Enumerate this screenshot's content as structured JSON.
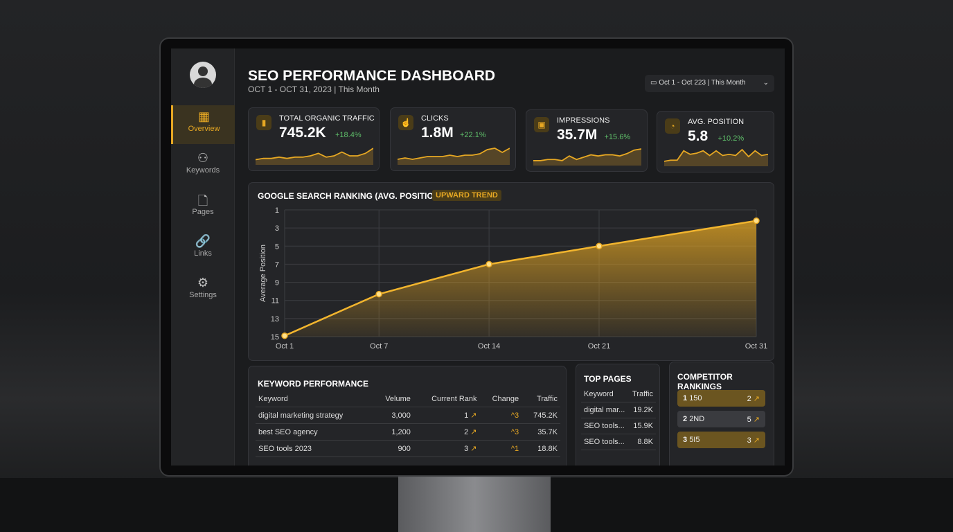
{
  "sidebar": {
    "items": [
      {
        "label": "Overview",
        "icon": "grid-icon",
        "glyph": "▦",
        "active": true
      },
      {
        "label": "Keywords",
        "icon": "nodes-icon",
        "glyph": "⚇"
      },
      {
        "label": "Pages",
        "icon": "page-icon",
        "glyph": "🗋"
      },
      {
        "label": "Links",
        "icon": "link-icon",
        "glyph": "🔗"
      },
      {
        "label": "Settings",
        "icon": "gear-icon",
        "glyph": "⚙"
      }
    ]
  },
  "header": {
    "title": "SEO PERFORMANCE DASHBOARD",
    "subtitle": "OCT 1 - OCT 31, 2023 | This Month",
    "date_range": "Oct 1 - Oct 223 | This Month"
  },
  "kpis": [
    {
      "label": "TOTAL ORGANIC TRAFFIC",
      "value": "745.2K",
      "change": "+18.4%",
      "glyph": "▮",
      "spark": [
        3,
        4,
        4,
        5,
        4,
        5,
        5,
        6,
        8,
        5,
        6,
        9,
        6,
        6,
        8,
        12
      ]
    },
    {
      "label": "CLICKS",
      "value": "1.8M",
      "change": "+22.1%",
      "glyph": "☝",
      "spark": [
        3,
        4,
        3,
        4,
        5,
        5,
        5,
        6,
        5,
        6,
        6,
        7,
        10,
        11,
        8,
        11
      ]
    },
    {
      "label": "IMPRESSIONS",
      "value": "35.7M",
      "change": "+15.6%",
      "glyph": "▣",
      "spark": [
        3,
        3,
        4,
        4,
        3,
        7,
        4,
        6,
        8,
        7,
        8,
        8,
        7,
        9,
        12,
        13
      ]
    },
    {
      "label": "AVG. POSITION",
      "value": "5.8",
      "change": "+10.2%",
      "glyph": "◔",
      "spark": [
        3,
        4,
        4,
        12,
        9,
        10,
        12,
        8,
        12,
        8,
        9,
        8,
        13,
        7,
        12,
        8,
        9
      ]
    }
  ],
  "colors": {
    "accent": "#e7a823",
    "positive": "#5fbf6a"
  },
  "chart_data": {
    "type": "area",
    "title": "GOOGLE SEARCH RANKING (AVG. POSITION)",
    "badge": "UPWARD TREND",
    "ylabel": "Average Position",
    "xlabel": "",
    "ylim": [
      1,
      15
    ],
    "y_inverted": true,
    "yticks": [
      1,
      3,
      5,
      7,
      9,
      11,
      13,
      15
    ],
    "x": [
      "Oct 1",
      "Oct 7",
      "Oct 14",
      "Oct 21",
      "Oct 31"
    ],
    "x_days": [
      1,
      7,
      14,
      21,
      31
    ],
    "values": [
      14.9,
      10.3,
      7.0,
      5.0,
      2.2
    ],
    "grid": true
  },
  "keywords": {
    "title": "KEYWORD PERFORMANCE",
    "columns": [
      "Keyword",
      "Velume",
      "Current Rank",
      "Change",
      "Traffic"
    ],
    "rows": [
      [
        "digital marketing strategy",
        "3,000",
        "1",
        "3",
        "745.2K"
      ],
      [
        "best SEO agency",
        "1,200",
        "2",
        "3",
        "35.7K"
      ],
      [
        "SEO tools 2023",
        "900",
        "3",
        "1",
        "18.8K"
      ]
    ]
  },
  "top_pages": {
    "title": "TOP PAGES",
    "columns": [
      "Keyword",
      "Traffic"
    ],
    "rows": [
      [
        "digital mar...",
        "19.2K"
      ],
      [
        "SEO tools...",
        "15.9K"
      ],
      [
        "SEO tools...",
        "8.8K"
      ]
    ]
  },
  "competitors": {
    "title": "COMPETITOR RANKINGS",
    "rows": [
      {
        "rank": "1",
        "name": "150",
        "pos": "2",
        "style": "gold"
      },
      {
        "rank": "2",
        "name": "2ND",
        "pos": "5",
        "style": "gray"
      },
      {
        "rank": "3",
        "name": "5I5",
        "pos": "3",
        "style": "gold"
      }
    ]
  }
}
